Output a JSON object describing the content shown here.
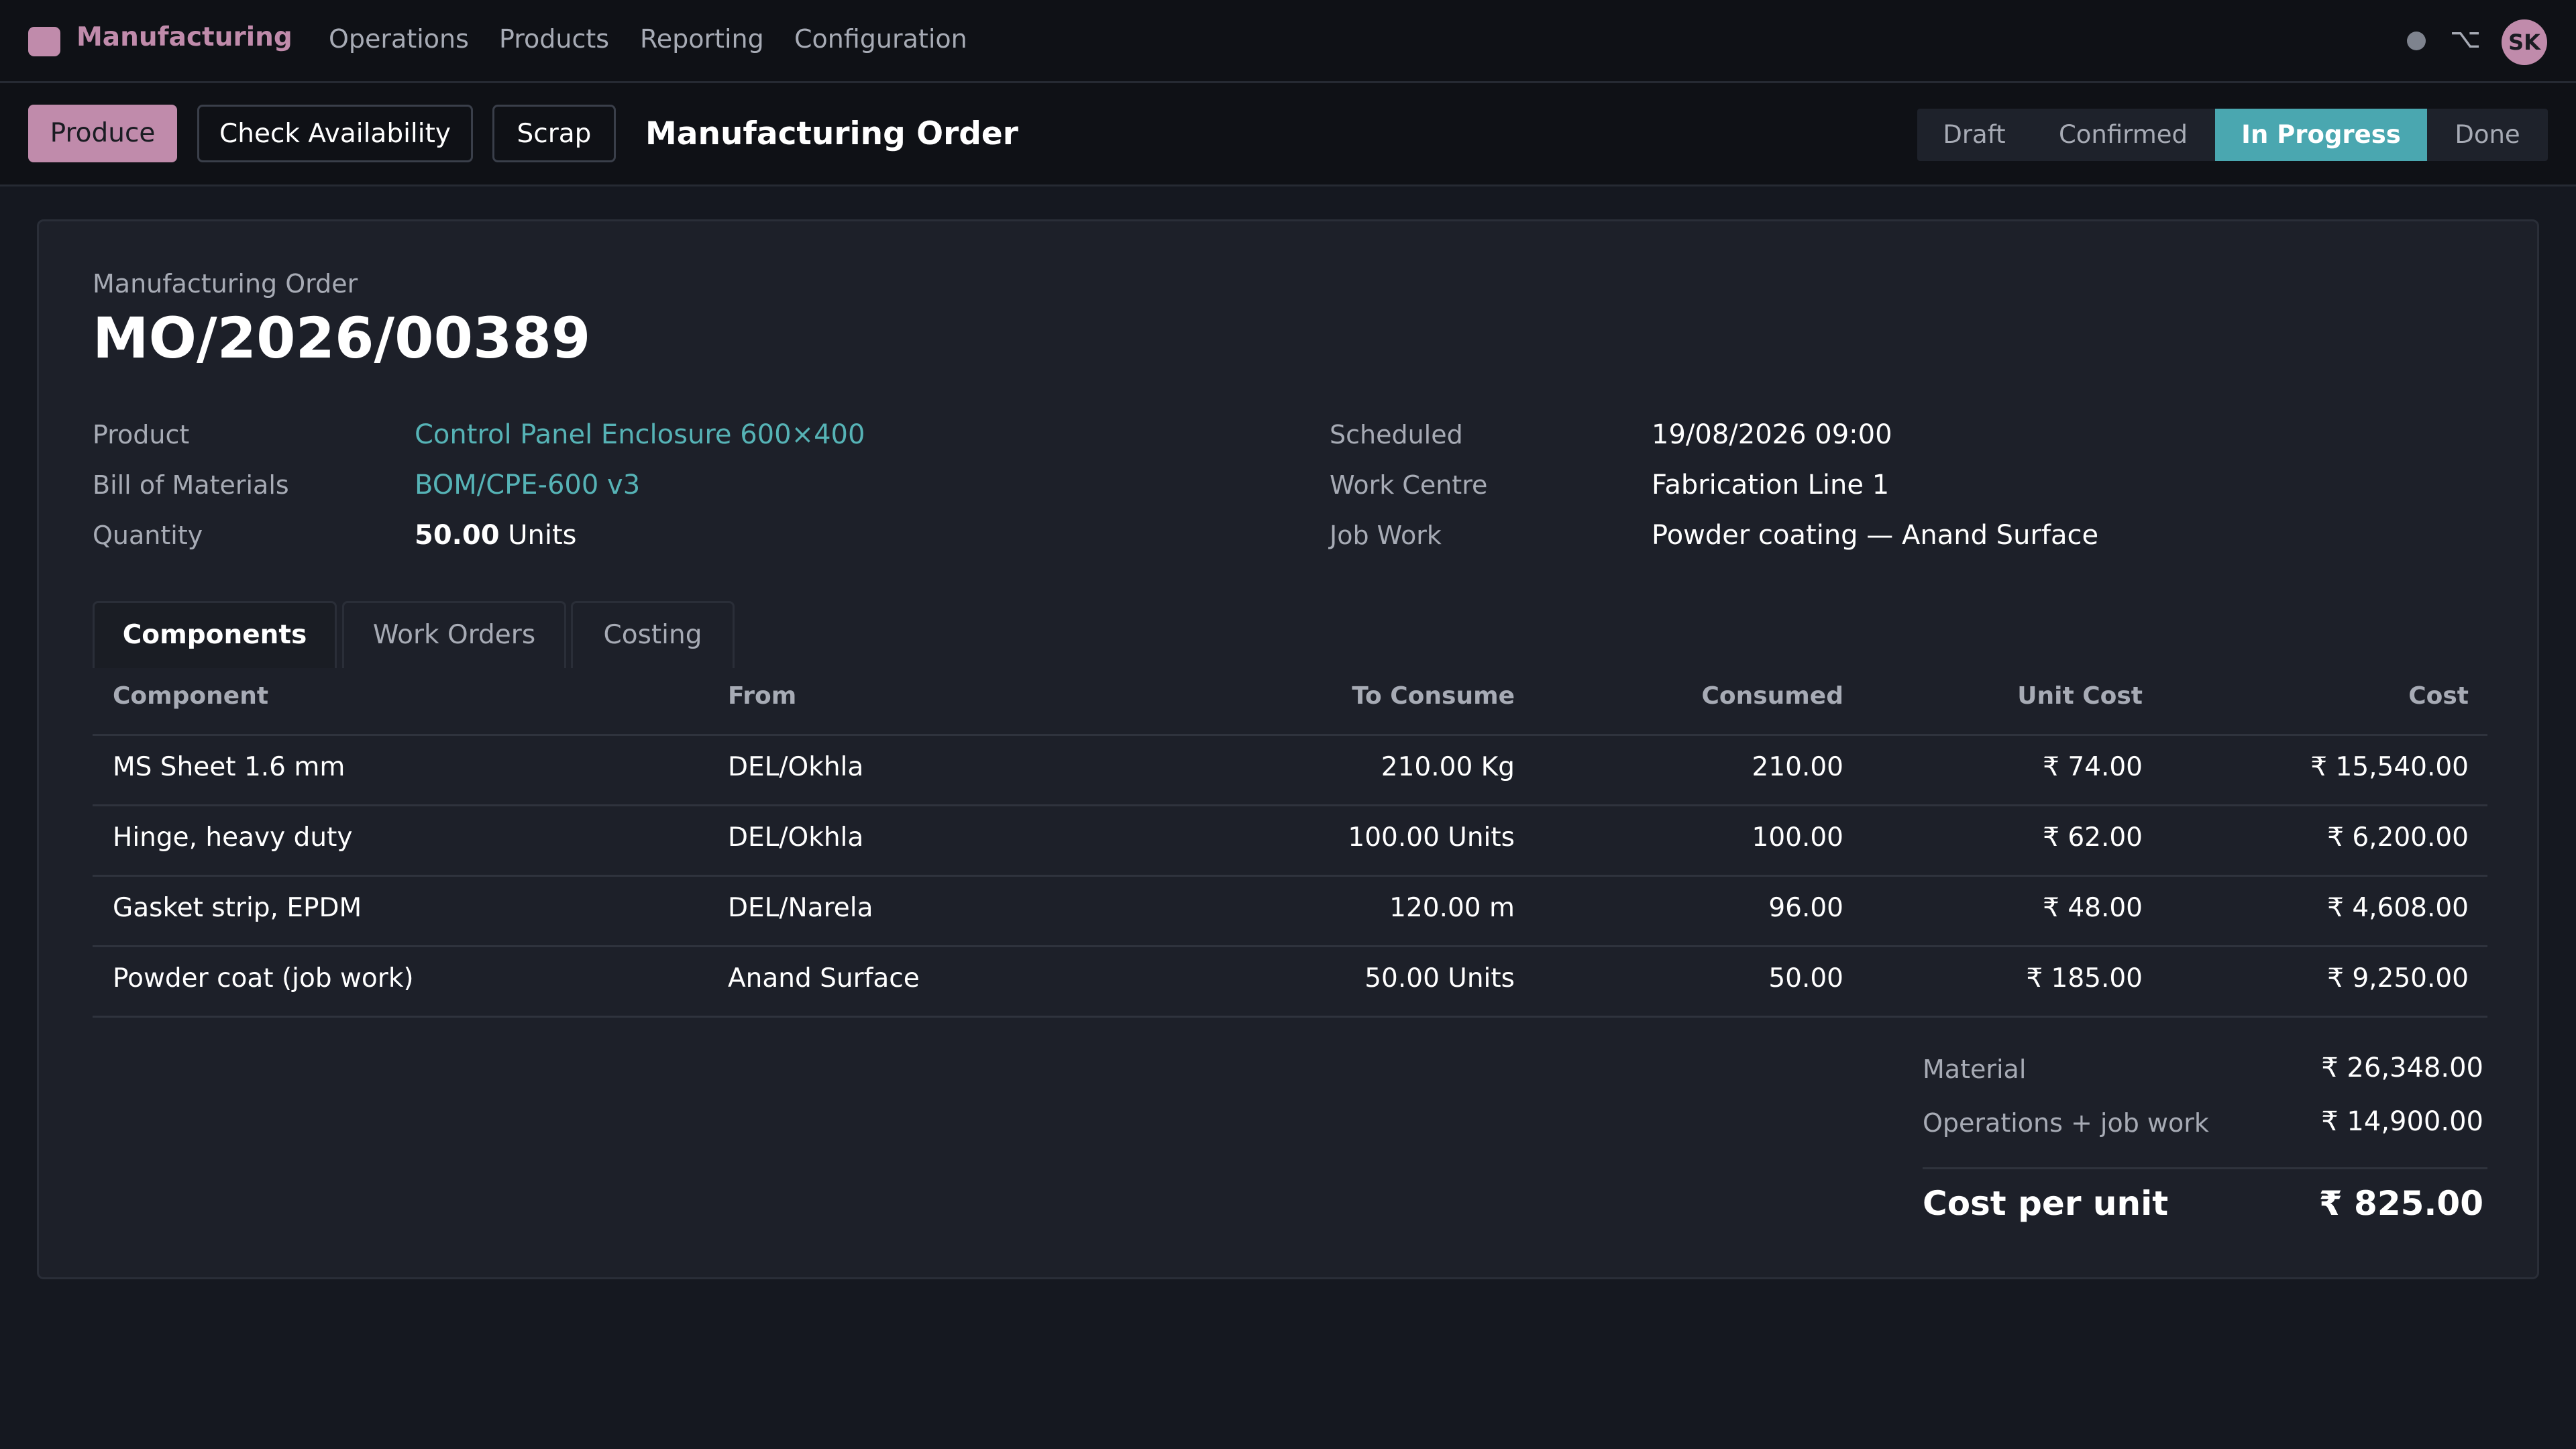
{
  "nav": {
    "app_name": "Manufacturing",
    "menu": [
      "Operations",
      "Products",
      "Reporting",
      "Configuration"
    ],
    "avatar_initials": "SK",
    "debug_icon": "⌥",
    "brand_color": "#c08bab"
  },
  "control": {
    "produce_label": "Produce",
    "check_label": "Check Availability",
    "scrap_label": "Scrap",
    "title": "Manufacturing Order",
    "stages": [
      "Draft",
      "Confirmed",
      "In Progress",
      "Done"
    ],
    "active_stage": "In Progress",
    "accent_color": "#4aa7b0"
  },
  "order": {
    "doc_label": "Manufacturing Order",
    "number": "MO/2026/00389",
    "fields": {
      "product_label": "Product",
      "product_value": "Control Panel Enclosure 600×400",
      "bom_label": "Bill of Materials",
      "bom_value": "BOM/CPE-600 v3",
      "qty_label": "Quantity",
      "qty_amount": "50.00",
      "qty_unit": "Units",
      "scheduled_label": "Scheduled",
      "scheduled_value": "19/08/2026 09:00",
      "workcentre_label": "Work Centre",
      "workcentre_value": "Fabrication Line 1",
      "jobwork_label": "Job Work",
      "jobwork_value": "Powder coating — Anand Surface"
    }
  },
  "tabs": [
    "Components",
    "Work Orders",
    "Costing"
  ],
  "table": {
    "headers": [
      "Component",
      "From",
      "To Consume",
      "Consumed",
      "Unit Cost",
      "Cost"
    ],
    "rows": [
      {
        "component": "MS Sheet 1.6 mm",
        "from": "DEL/Okhla",
        "to_consume": "210.00 Kg",
        "consumed": "210.00",
        "unit_cost": "₹ 74.00",
        "cost": "₹ 15,540.00"
      },
      {
        "component": "Hinge, heavy duty",
        "from": "DEL/Okhla",
        "to_consume": "100.00 Units",
        "consumed": "100.00",
        "unit_cost": "₹ 62.00",
        "cost": "₹ 6,200.00"
      },
      {
        "component": "Gasket strip, EPDM",
        "from": "DEL/Narela",
        "to_consume": "120.00 m",
        "consumed": "96.00",
        "unit_cost": "₹ 48.00",
        "cost": "₹ 4,608.00"
      },
      {
        "component": "Powder coat (job work)",
        "from": "Anand Surface",
        "to_consume": "50.00 Units",
        "consumed": "50.00",
        "unit_cost": "₹ 185.00",
        "cost": "₹ 9,250.00"
      }
    ]
  },
  "totals": {
    "material_label": "Material",
    "material_value": "₹ 26,348.00",
    "ops_label": "Operations + job work",
    "ops_value": "₹ 14,900.00",
    "unit_label": "Cost per unit",
    "unit_value": "₹ 825.00"
  }
}
